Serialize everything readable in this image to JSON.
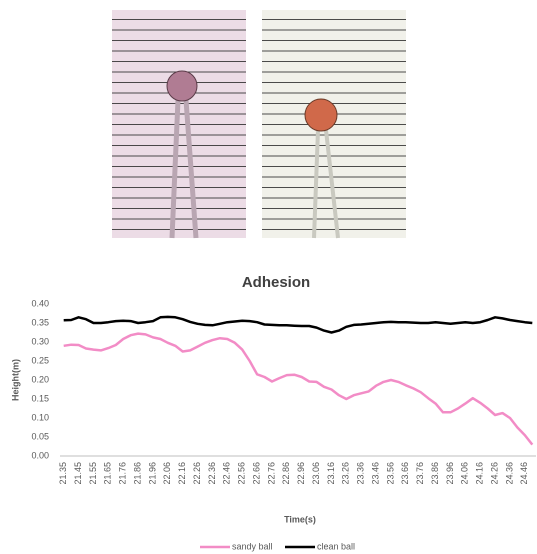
{
  "chart_data": {
    "type": "line",
    "title": "Adhesion",
    "x_label": "Time(s)",
    "y_label": "Height(m)",
    "categories": [
      "21.35",
      null,
      "21.45",
      null,
      "21.55",
      null,
      "21.65",
      null,
      "21.76",
      null,
      "21.86",
      null,
      "21.96",
      null,
      "22.06",
      null,
      "22.16",
      null,
      "22.26",
      null,
      "22.36",
      null,
      "22.46",
      null,
      "22.56",
      null,
      "22.66",
      null,
      "22.76",
      null,
      "22.86",
      null,
      "22.96",
      null,
      "23.06",
      null,
      "23.16",
      null,
      "23.26",
      null,
      "23.36",
      null,
      "23.46",
      null,
      "23.56",
      null,
      "23.66",
      null,
      "23.76",
      null,
      "23.86",
      null,
      "23.96",
      null,
      "24.06",
      null,
      "24.16",
      null,
      "24.26",
      null,
      "24.36",
      null,
      "24.46",
      null
    ],
    "series": [
      {
        "name": "sandy ball",
        "color": "#f28cc6",
        "values": [
          0.29,
          0.293,
          0.292,
          0.283,
          0.28,
          0.278,
          0.284,
          0.292,
          0.308,
          0.318,
          0.322,
          0.32,
          0.312,
          0.308,
          0.298,
          0.29,
          0.275,
          0.278,
          0.288,
          0.298,
          0.305,
          0.31,
          0.308,
          0.298,
          0.28,
          0.25,
          0.215,
          0.208,
          0.196,
          0.205,
          0.213,
          0.214,
          0.208,
          0.196,
          0.195,
          0.182,
          0.175,
          0.16,
          0.15,
          0.16,
          0.165,
          0.17,
          0.185,
          0.195,
          0.2,
          0.195,
          0.186,
          0.178,
          0.168,
          0.152,
          0.138,
          0.115,
          0.115,
          0.125,
          0.138,
          0.152,
          0.14,
          0.125,
          0.108,
          0.113,
          0.1,
          0.075,
          0.055,
          0.03
        ]
      },
      {
        "name": "clean ball",
        "color": "#000000",
        "values": [
          0.357,
          0.358,
          0.365,
          0.36,
          0.35,
          0.35,
          0.352,
          0.355,
          0.356,
          0.355,
          0.35,
          0.352,
          0.355,
          0.365,
          0.366,
          0.365,
          0.36,
          0.353,
          0.348,
          0.345,
          0.344,
          0.348,
          0.352,
          0.354,
          0.356,
          0.355,
          0.352,
          0.346,
          0.345,
          0.344,
          0.344,
          0.343,
          0.342,
          0.342,
          0.338,
          0.33,
          0.325,
          0.33,
          0.34,
          0.345,
          0.346,
          0.348,
          0.35,
          0.352,
          0.353,
          0.352,
          0.352,
          0.351,
          0.35,
          0.35,
          0.352,
          0.35,
          0.348,
          0.35,
          0.352,
          0.35,
          0.352,
          0.358,
          0.365,
          0.362,
          0.358,
          0.355,
          0.352,
          0.35
        ]
      }
    ],
    "ylim": [
      0,
      0.4
    ],
    "yticks": [
      {
        "value": 0,
        "label": "0.00"
      },
      {
        "value": 0.05,
        "label": "0.05"
      },
      {
        "value": 0.1,
        "label": "0.10"
      },
      {
        "value": 0.15,
        "label": "0.15"
      },
      {
        "value": 0.2,
        "label": "0.20"
      },
      {
        "value": 0.25,
        "label": "0.25"
      },
      {
        "value": 0.3,
        "label": "0.30"
      },
      {
        "value": 0.35,
        "label": "0.35"
      },
      {
        "value": 0.4,
        "label": "0.40"
      }
    ],
    "grid": false
  }
}
